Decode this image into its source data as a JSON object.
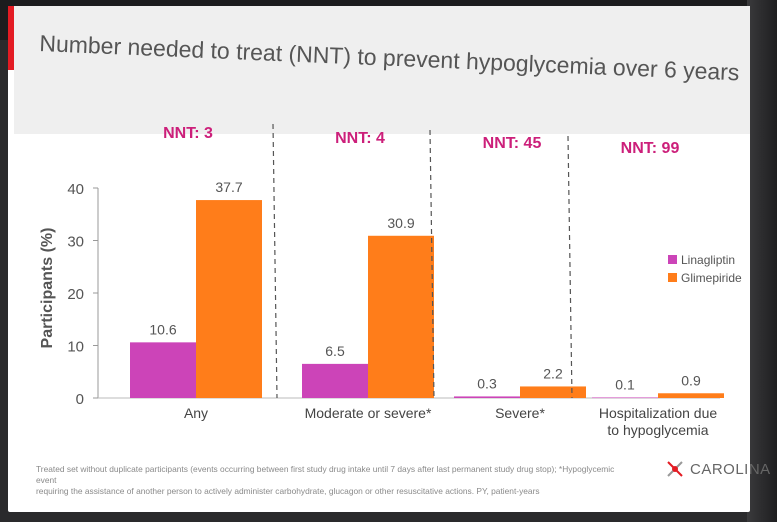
{
  "slide": {
    "title": "Number needed to treat (NNT) to prevent hypoglycemia over 6 years",
    "footnote_line1": "Treated set without duplicate participants (events occurring between first study drug intake until 7 days after last permanent study drug stop); *Hypoglycemic event",
    "footnote_line2": "requiring the assistance of another person to actively administer carbohydrate, glucagon or other resuscitative actions. PY, patient-years",
    "logo_text": "CAROLINA"
  },
  "chart_data": {
    "type": "bar",
    "ylabel": "Participants (%)",
    "ylim": [
      0,
      40
    ],
    "yticks": [
      0,
      10,
      20,
      30,
      40
    ],
    "categories": [
      [
        "Any"
      ],
      [
        "Moderate or severe*"
      ],
      [
        "Severe*"
      ],
      [
        "Hospitalization due",
        "to hypoglycemia"
      ]
    ],
    "nnt_labels": [
      "NNT: 3",
      "NNT: 4",
      "NNT: 45",
      "NNT: 99"
    ],
    "series": [
      {
        "name": "Linagliptin",
        "color": "#cc44b8",
        "values": [
          10.6,
          6.5,
          0.3,
          0.1
        ],
        "labels": [
          "10.6",
          "6.5",
          "0.3",
          "0.1"
        ]
      },
      {
        "name": "Glimepiride",
        "color": "#ff7d1a",
        "values": [
          37.7,
          30.9,
          2.2,
          0.9
        ],
        "labels": [
          "37.7",
          "30.9",
          "2.2",
          "0.9"
        ]
      }
    ],
    "legend_position": "right",
    "nnt_color": "#cc1f7a"
  }
}
